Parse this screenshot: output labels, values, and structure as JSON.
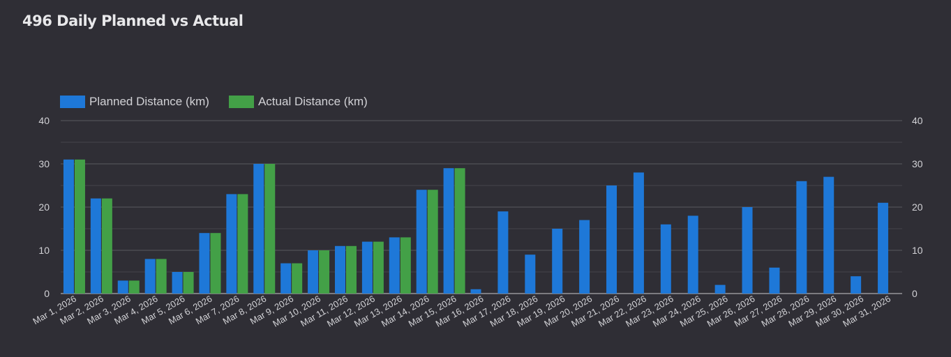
{
  "page": {
    "title": "496 Daily Planned vs Actual"
  },
  "colors": {
    "background": "#2f2e35",
    "planned": "#1e78d8",
    "actual": "#43a047",
    "grid": "#4a4950",
    "text": "#d2d2d6"
  },
  "legend": {
    "planned_label": "Planned Distance (km)",
    "actual_label": "Actual Distance (km)"
  },
  "chart_data": {
    "type": "bar",
    "title": "496 Daily Planned vs Actual",
    "xlabel": "",
    "ylabel": "",
    "ylim": [
      0,
      40
    ],
    "yticks": [
      0,
      10,
      20,
      30,
      40
    ],
    "grid": true,
    "legend_position": "top-left",
    "categories": [
      "Mar 1, 2026",
      "Mar 2, 2026",
      "Mar 3, 2026",
      "Mar 4, 2026",
      "Mar 5, 2026",
      "Mar 6, 2026",
      "Mar 7, 2026",
      "Mar 8, 2026",
      "Mar 9, 2026",
      "Mar 10, 2026",
      "Mar 11, 2026",
      "Mar 12, 2026",
      "Mar 13, 2026",
      "Mar 14, 2026",
      "Mar 15, 2026",
      "Mar 16, 2026",
      "Mar 17, 2026",
      "Mar 18, 2026",
      "Mar 19, 2026",
      "Mar 20, 2026",
      "Mar 21, 2026",
      "Mar 22, 2026",
      "Mar 23, 2026",
      "Mar 24, 2026",
      "Mar 25, 2026",
      "Mar 26, 2026",
      "Mar 27, 2026",
      "Mar 28, 2026",
      "Mar 29, 2026",
      "Mar 30, 2026",
      "Mar 31, 2026"
    ],
    "series": [
      {
        "name": "Planned Distance (km)",
        "color": "#1e78d8",
        "values": [
          31,
          22,
          3,
          8,
          5,
          14,
          23,
          30,
          7,
          10,
          11,
          12,
          13,
          24,
          29,
          1,
          19,
          9,
          15,
          17,
          25,
          28,
          16,
          18,
          2,
          20,
          6,
          26,
          27,
          4,
          21
        ]
      },
      {
        "name": "Actual Distance (km)",
        "color": "#43a047",
        "values": [
          31,
          22,
          3,
          8,
          5,
          14,
          23,
          30,
          7,
          10,
          11,
          12,
          13,
          24,
          29,
          null,
          null,
          null,
          null,
          null,
          null,
          null,
          null,
          null,
          null,
          null,
          null,
          null,
          null,
          null,
          null
        ]
      }
    ]
  }
}
